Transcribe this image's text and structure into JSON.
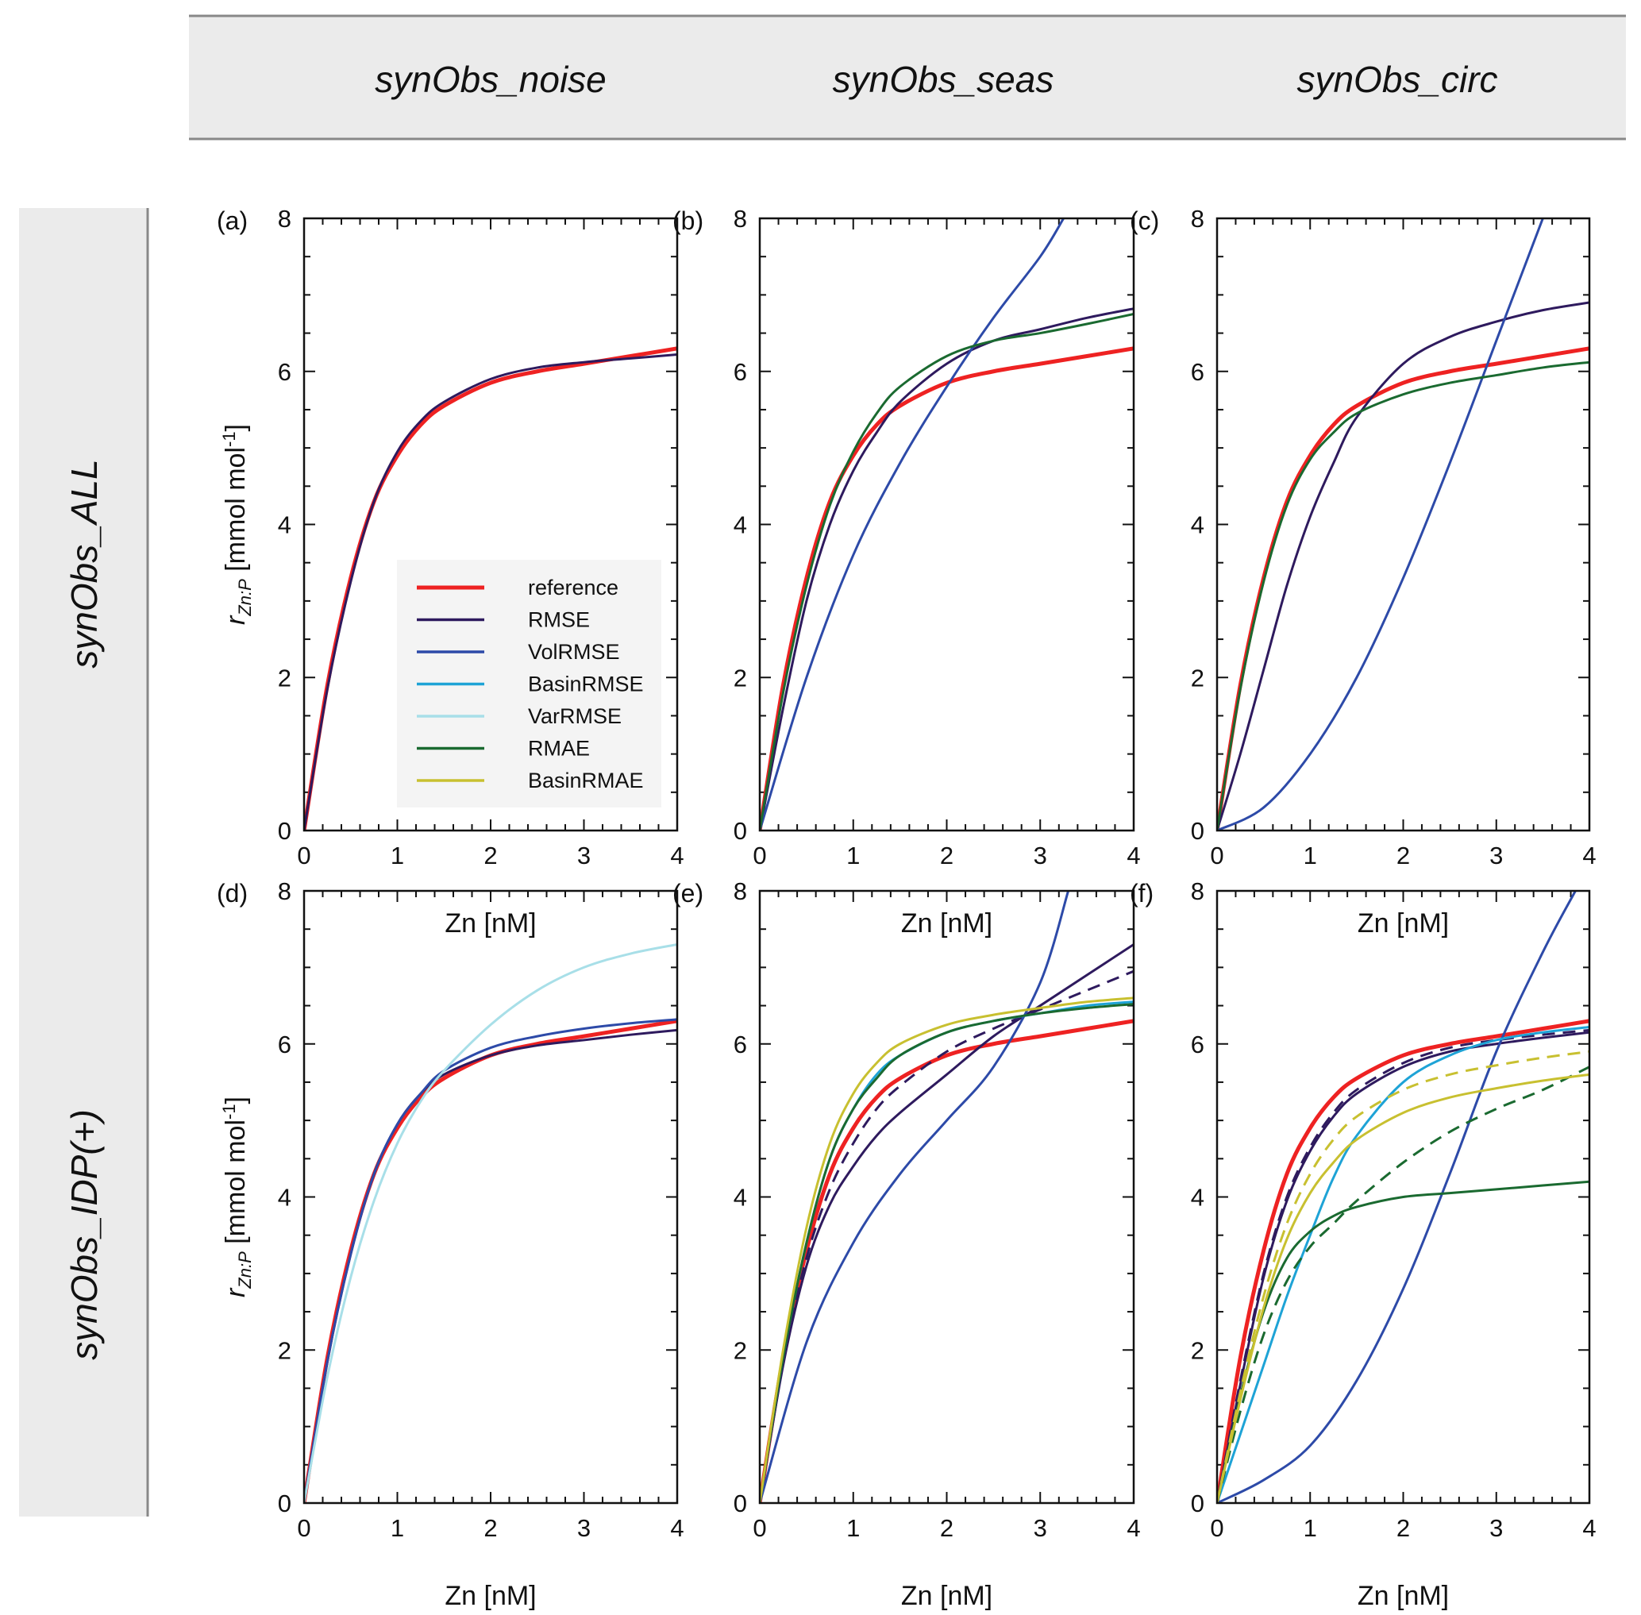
{
  "header": {
    "columns": [
      "synObs_noise",
      "synObs_seas",
      "synObs_circ"
    ],
    "rows": [
      "synObs_ALL",
      "synObs_IDP(+)"
    ]
  },
  "axes": {
    "xlabel": "Zn [nM]",
    "ylabel_main": "r",
    "ylabel_sub": "Zn:P",
    "ylabel_units": " [mmol mol",
    "ylabel_exp": "-1",
    "ylabel_close": "]",
    "xticks": [
      "0",
      "1",
      "2",
      "3",
      "4"
    ],
    "yticks": [
      "0",
      "2",
      "4",
      "6",
      "8"
    ]
  },
  "legend": [
    {
      "label": "reference",
      "color": "#ee2222"
    },
    {
      "label": "RMSE",
      "color": "#2e1a5e"
    },
    {
      "label": "VolRMSE",
      "color": "#2d4aa8"
    },
    {
      "label": "BasinRMSE",
      "color": "#1ea3d6"
    },
    {
      "label": "VarRMSE",
      "color": "#a8dfe8"
    },
    {
      "label": "RMAE",
      "color": "#1a6a30"
    },
    {
      "label": "BasinRMAE",
      "color": "#c8c030"
    }
  ],
  "chart_data": [
    {
      "panel": "(a)",
      "type": "line",
      "xlim": [
        0,
        4
      ],
      "ylim": [
        0,
        8
      ],
      "series": [
        {
          "name": "reference",
          "color": "#ee2222",
          "width": 5,
          "x": [
            0,
            0.25,
            0.5,
            0.75,
            1,
            1.25,
            1.5,
            2,
            2.5,
            3,
            3.5,
            4
          ],
          "y": [
            0,
            1.9,
            3.3,
            4.3,
            4.9,
            5.3,
            5.55,
            5.85,
            6.0,
            6.1,
            6.2,
            6.3
          ]
        },
        {
          "name": "RMSE",
          "color": "#2e1a5e",
          "width": 3,
          "x": [
            0,
            0.25,
            0.5,
            0.75,
            1,
            1.25,
            1.5,
            2,
            2.5,
            3,
            3.5,
            4
          ],
          "y": [
            0,
            1.85,
            3.25,
            4.3,
            4.95,
            5.35,
            5.6,
            5.9,
            6.05,
            6.12,
            6.17,
            6.22
          ]
        }
      ]
    },
    {
      "panel": "(b)",
      "type": "line",
      "xlim": [
        0,
        4
      ],
      "ylim": [
        0,
        8
      ],
      "series": [
        {
          "name": "reference",
          "color": "#ee2222",
          "width": 5,
          "x": [
            0,
            0.25,
            0.5,
            0.75,
            1,
            1.25,
            1.5,
            2,
            2.5,
            3,
            3.5,
            4
          ],
          "y": [
            0,
            1.9,
            3.3,
            4.3,
            4.9,
            5.3,
            5.55,
            5.85,
            6.0,
            6.1,
            6.2,
            6.3
          ]
        },
        {
          "name": "RMSE",
          "color": "#2e1a5e",
          "width": 3,
          "x": [
            0,
            0.25,
            0.5,
            0.75,
            1,
            1.25,
            1.5,
            2,
            2.5,
            3,
            3.5,
            4
          ],
          "y": [
            0,
            1.6,
            3.0,
            4.0,
            4.7,
            5.2,
            5.6,
            6.1,
            6.4,
            6.55,
            6.7,
            6.82
          ]
        },
        {
          "name": "VolRMSE",
          "color": "#2d4aa8",
          "width": 3,
          "x": [
            0,
            0.5,
            1,
            1.5,
            2,
            2.5,
            3,
            3.25
          ],
          "y": [
            0,
            2.0,
            3.6,
            4.8,
            5.8,
            6.7,
            7.5,
            8.0
          ]
        },
        {
          "name": "RMAE",
          "color": "#1a6a30",
          "width": 3,
          "x": [
            0,
            0.25,
            0.5,
            0.75,
            1,
            1.25,
            1.5,
            2,
            2.5,
            3,
            3.5,
            4
          ],
          "y": [
            0,
            1.8,
            3.2,
            4.25,
            4.95,
            5.45,
            5.8,
            6.2,
            6.4,
            6.5,
            6.62,
            6.75
          ]
        }
      ]
    },
    {
      "panel": "(c)",
      "type": "line",
      "xlim": [
        0,
        4
      ],
      "ylim": [
        0,
        8
      ],
      "series": [
        {
          "name": "reference",
          "color": "#ee2222",
          "width": 5,
          "x": [
            0,
            0.25,
            0.5,
            0.75,
            1,
            1.25,
            1.5,
            2,
            2.5,
            3,
            3.5,
            4
          ],
          "y": [
            0,
            1.9,
            3.3,
            4.3,
            4.9,
            5.3,
            5.55,
            5.85,
            6.0,
            6.1,
            6.2,
            6.3
          ]
        },
        {
          "name": "RMSE",
          "color": "#2e1a5e",
          "width": 3,
          "x": [
            0,
            0.25,
            0.5,
            0.75,
            1,
            1.25,
            1.5,
            2,
            2.5,
            3,
            3.5,
            4
          ],
          "y": [
            0,
            1.0,
            2.1,
            3.2,
            4.1,
            4.8,
            5.4,
            6.1,
            6.45,
            6.65,
            6.8,
            6.9
          ]
        },
        {
          "name": "VolRMSE",
          "color": "#2d4aa8",
          "width": 3,
          "x": [
            0,
            0.5,
            1,
            1.5,
            2,
            2.5,
            3,
            3.25,
            3.5
          ],
          "y": [
            0,
            0.3,
            1.0,
            2.0,
            3.3,
            4.8,
            6.4,
            7.2,
            8.0
          ]
        },
        {
          "name": "RMAE",
          "color": "#1a6a30",
          "width": 3,
          "x": [
            0,
            0.25,
            0.5,
            0.75,
            1,
            1.25,
            1.5,
            2,
            2.5,
            3,
            3.5,
            4
          ],
          "y": [
            0,
            1.85,
            3.25,
            4.25,
            4.85,
            5.2,
            5.45,
            5.7,
            5.85,
            5.95,
            6.05,
            6.12
          ]
        }
      ]
    },
    {
      "panel": "(d)",
      "type": "line",
      "xlim": [
        0,
        4
      ],
      "ylim": [
        0,
        8
      ],
      "series": [
        {
          "name": "reference",
          "color": "#ee2222",
          "width": 5,
          "x": [
            0,
            0.25,
            0.5,
            0.75,
            1,
            1.25,
            1.5,
            2,
            2.5,
            3,
            3.5,
            4
          ],
          "y": [
            0,
            1.9,
            3.3,
            4.3,
            4.9,
            5.3,
            5.55,
            5.85,
            6.0,
            6.1,
            6.2,
            6.3
          ]
        },
        {
          "name": "RMSE",
          "color": "#2e1a5e",
          "width": 3,
          "x": [
            0,
            0.25,
            0.5,
            0.75,
            1,
            1.25,
            1.5,
            2,
            2.5,
            3,
            3.5,
            4
          ],
          "y": [
            0,
            1.85,
            3.25,
            4.3,
            4.95,
            5.35,
            5.6,
            5.85,
            5.98,
            6.05,
            6.12,
            6.18
          ]
        },
        {
          "name": "VolRMSE",
          "color": "#2d4aa8",
          "width": 3,
          "x": [
            0,
            0.25,
            0.5,
            0.75,
            1,
            1.25,
            1.5,
            2,
            2.5,
            3,
            3.5,
            4
          ],
          "y": [
            0,
            1.85,
            3.25,
            4.3,
            4.95,
            5.35,
            5.65,
            5.95,
            6.1,
            6.2,
            6.27,
            6.32
          ]
        },
        {
          "name": "VarRMSE",
          "color": "#a8dfe8",
          "width": 3,
          "x": [
            0,
            0.25,
            0.5,
            0.75,
            1,
            1.25,
            1.5,
            2,
            2.5,
            3,
            3.5,
            4
          ],
          "y": [
            0,
            1.65,
            2.95,
            3.95,
            4.7,
            5.25,
            5.65,
            6.25,
            6.7,
            7.0,
            7.18,
            7.3
          ]
        }
      ]
    },
    {
      "panel": "(e)",
      "type": "line",
      "xlim": [
        0,
        4
      ],
      "ylim": [
        0,
        8
      ],
      "series": [
        {
          "name": "reference",
          "color": "#ee2222",
          "width": 5,
          "x": [
            0,
            0.25,
            0.5,
            0.75,
            1,
            1.25,
            1.5,
            2,
            2.5,
            3,
            3.5,
            4
          ],
          "y": [
            0,
            1.9,
            3.3,
            4.3,
            4.9,
            5.3,
            5.55,
            5.85,
            6.0,
            6.1,
            6.2,
            6.3
          ]
        },
        {
          "name": "RMSE",
          "color": "#2e1a5e",
          "width": 3,
          "x": [
            0,
            0.25,
            0.5,
            0.75,
            1,
            1.25,
            1.5,
            2,
            2.5,
            3,
            3.5,
            4
          ],
          "y": [
            0,
            1.8,
            3.1,
            3.9,
            4.4,
            4.8,
            5.1,
            5.6,
            6.1,
            6.5,
            6.9,
            7.3
          ]
        },
        {
          "name": "RMSE (IDP)",
          "color": "#2e1a5e",
          "width": 3,
          "dash": "16,10",
          "x": [
            0,
            0.25,
            0.5,
            0.75,
            1,
            1.25,
            1.5,
            2,
            2.5,
            3,
            3.5,
            4
          ],
          "y": [
            0,
            1.85,
            3.2,
            4.1,
            4.7,
            5.15,
            5.45,
            5.9,
            6.2,
            6.45,
            6.7,
            6.95
          ]
        },
        {
          "name": "VolRMSE",
          "color": "#2d4aa8",
          "width": 3,
          "x": [
            0,
            0.5,
            1,
            1.5,
            2,
            2.5,
            3,
            3.3
          ],
          "y": [
            0,
            2.1,
            3.4,
            4.3,
            5.0,
            5.7,
            6.8,
            8.0
          ]
        },
        {
          "name": "BasinRMSE",
          "color": "#1ea3d6",
          "width": 3,
          "x": [
            0,
            0.25,
            0.5,
            0.75,
            1,
            1.25,
            1.5,
            2,
            2.5,
            3,
            3.5,
            4
          ],
          "y": [
            0,
            1.9,
            3.4,
            4.5,
            5.15,
            5.6,
            5.85,
            6.15,
            6.3,
            6.4,
            6.5,
            6.55
          ]
        },
        {
          "name": "RMAE",
          "color": "#1a6a30",
          "width": 3,
          "x": [
            0,
            0.25,
            0.5,
            0.75,
            1,
            1.25,
            1.5,
            2,
            2.5,
            3,
            3.5,
            4
          ],
          "y": [
            0,
            1.9,
            3.4,
            4.5,
            5.15,
            5.55,
            5.85,
            6.15,
            6.3,
            6.4,
            6.47,
            6.52
          ]
        },
        {
          "name": "BasinRMAE",
          "color": "#c8c030",
          "width": 3,
          "x": [
            0,
            0.25,
            0.5,
            0.75,
            1,
            1.25,
            1.5,
            2,
            2.5,
            3,
            3.5,
            4
          ],
          "y": [
            0,
            2.0,
            3.6,
            4.7,
            5.35,
            5.75,
            6.0,
            6.25,
            6.38,
            6.47,
            6.55,
            6.6
          ]
        }
      ]
    },
    {
      "panel": "(f)",
      "type": "line",
      "xlim": [
        0,
        4
      ],
      "ylim": [
        0,
        8
      ],
      "series": [
        {
          "name": "reference",
          "color": "#ee2222",
          "width": 5,
          "x": [
            0,
            0.25,
            0.5,
            0.75,
            1,
            1.25,
            1.5,
            2,
            2.5,
            3,
            3.5,
            4
          ],
          "y": [
            0,
            1.9,
            3.3,
            4.3,
            4.9,
            5.3,
            5.55,
            5.85,
            6.0,
            6.1,
            6.2,
            6.3
          ]
        },
        {
          "name": "RMSE",
          "color": "#2e1a5e",
          "width": 3,
          "x": [
            0,
            0.25,
            0.5,
            0.75,
            1,
            1.25,
            1.5,
            2,
            2.5,
            3,
            3.5,
            4
          ],
          "y": [
            0,
            1.55,
            2.95,
            3.95,
            4.6,
            5.05,
            5.35,
            5.7,
            5.9,
            6.0,
            6.08,
            6.15
          ]
        },
        {
          "name": "RMSE (IDP)",
          "color": "#2e1a5e",
          "width": 3,
          "dash": "16,10",
          "x": [
            0,
            0.25,
            0.5,
            0.75,
            1,
            1.25,
            1.5,
            2,
            2.5,
            3,
            3.5,
            4
          ],
          "y": [
            0,
            1.6,
            3.0,
            4.0,
            4.65,
            5.1,
            5.4,
            5.75,
            5.95,
            6.05,
            6.12,
            6.18
          ]
        },
        {
          "name": "VolRMSE",
          "color": "#2d4aa8",
          "width": 3,
          "x": [
            0,
            0.5,
            1,
            1.5,
            2,
            2.5,
            3,
            3.5,
            3.85
          ],
          "y": [
            0,
            0.3,
            0.75,
            1.6,
            2.8,
            4.3,
            5.9,
            7.2,
            8.0
          ]
        },
        {
          "name": "BasinRMSE",
          "color": "#1ea3d6",
          "width": 3,
          "x": [
            0,
            0.25,
            0.5,
            0.75,
            1,
            1.25,
            1.5,
            2,
            2.5,
            3,
            3.5,
            4
          ],
          "y": [
            0,
            0.9,
            1.8,
            2.7,
            3.5,
            4.25,
            4.8,
            5.5,
            5.85,
            6.05,
            6.15,
            6.22
          ]
        },
        {
          "name": "RMAE",
          "color": "#1a6a30",
          "width": 3,
          "x": [
            0,
            0.25,
            0.5,
            0.75,
            1,
            1.25,
            1.5,
            2,
            2.5,
            3,
            3.5,
            4
          ],
          "y": [
            0,
            1.4,
            2.5,
            3.2,
            3.55,
            3.75,
            3.87,
            4.0,
            4.05,
            4.1,
            4.15,
            4.2
          ]
        },
        {
          "name": "RMAE (IDP)",
          "color": "#1a6a30",
          "width": 3,
          "dash": "16,10",
          "x": [
            0,
            0.25,
            0.5,
            0.75,
            1,
            1.25,
            1.5,
            2,
            2.5,
            3,
            3.5,
            4
          ],
          "y": [
            0,
            1.2,
            2.2,
            2.9,
            3.35,
            3.65,
            3.95,
            4.45,
            4.85,
            5.15,
            5.4,
            5.7
          ]
        },
        {
          "name": "BasinRMAE",
          "color": "#c8c030",
          "width": 3,
          "x": [
            0,
            0.25,
            0.5,
            0.75,
            1,
            1.25,
            1.5,
            2,
            2.5,
            3,
            3.5,
            4
          ],
          "y": [
            0,
            1.35,
            2.55,
            3.45,
            4.05,
            4.45,
            4.75,
            5.1,
            5.3,
            5.42,
            5.52,
            5.6
          ]
        },
        {
          "name": "BasinRMAE (IDP)",
          "color": "#c8c030",
          "width": 3,
          "dash": "16,10",
          "x": [
            0,
            0.25,
            0.5,
            0.75,
            1,
            1.25,
            1.5,
            2,
            2.5,
            3,
            3.5,
            4
          ],
          "y": [
            0,
            1.45,
            2.7,
            3.65,
            4.3,
            4.75,
            5.05,
            5.4,
            5.6,
            5.72,
            5.82,
            5.9
          ]
        }
      ]
    }
  ]
}
